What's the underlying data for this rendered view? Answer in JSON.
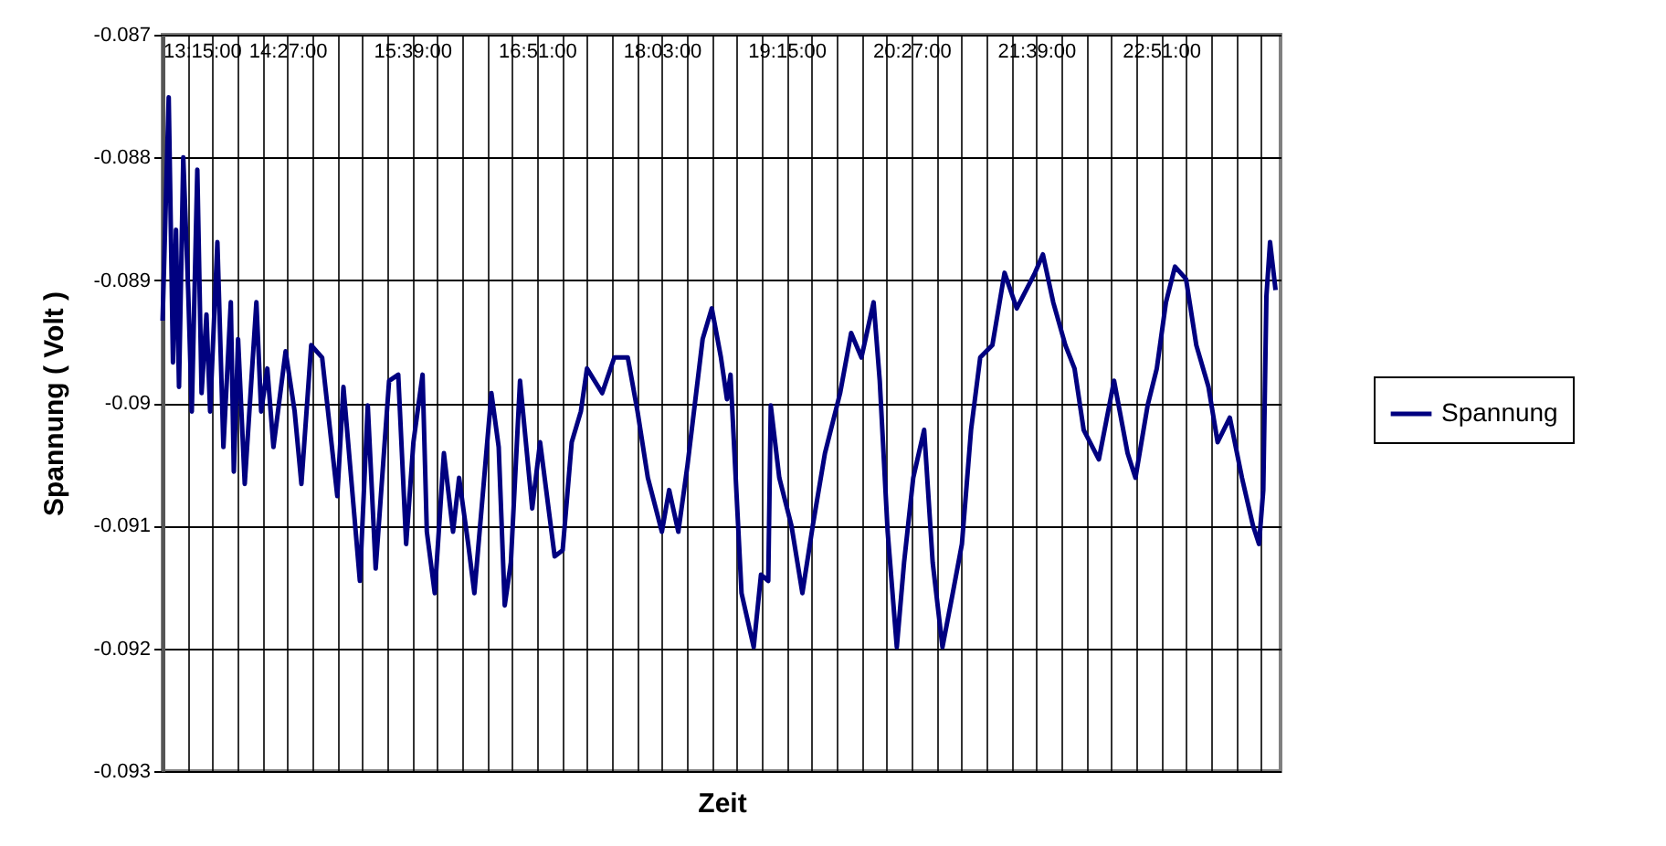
{
  "chart_data": {
    "type": "line",
    "xlabel": "Zeit",
    "ylabel": "Spannung ( Volt )",
    "xlim": [
      13.25,
      24.0
    ],
    "ylim": [
      -0.093,
      -0.087
    ],
    "yticks": [
      -0.093,
      -0.092,
      -0.091,
      -0.09,
      -0.089,
      -0.088,
      -0.087
    ],
    "xticks": [
      {
        "value": 13.25,
        "label": "13:15:00"
      },
      {
        "value": 13.49,
        "label": null
      },
      {
        "value": 13.73,
        "label": null
      },
      {
        "value": 13.97,
        "label": null
      },
      {
        "value": 14.21,
        "label": null
      },
      {
        "value": 14.45,
        "label": "14:27:00"
      },
      {
        "value": 14.69,
        "label": null
      },
      {
        "value": 14.93,
        "label": null
      },
      {
        "value": 15.17,
        "label": null
      },
      {
        "value": 15.41,
        "label": null
      },
      {
        "value": 15.65,
        "label": "15:39:00"
      },
      {
        "value": 15.89,
        "label": null
      },
      {
        "value": 16.13,
        "label": null
      },
      {
        "value": 16.37,
        "label": null
      },
      {
        "value": 16.61,
        "label": null
      },
      {
        "value": 16.85,
        "label": "16:51:00"
      },
      {
        "value": 17.09,
        "label": null
      },
      {
        "value": 17.33,
        "label": null
      },
      {
        "value": 17.57,
        "label": null
      },
      {
        "value": 17.81,
        "label": null
      },
      {
        "value": 18.05,
        "label": "18:03:00"
      },
      {
        "value": 18.29,
        "label": null
      },
      {
        "value": 18.53,
        "label": null
      },
      {
        "value": 18.77,
        "label": null
      },
      {
        "value": 19.01,
        "label": null
      },
      {
        "value": 19.25,
        "label": "19:15:00"
      },
      {
        "value": 19.49,
        "label": null
      },
      {
        "value": 19.73,
        "label": null
      },
      {
        "value": 19.97,
        "label": null
      },
      {
        "value": 20.21,
        "label": null
      },
      {
        "value": 20.45,
        "label": "20:27:00"
      },
      {
        "value": 20.69,
        "label": null
      },
      {
        "value": 20.93,
        "label": null
      },
      {
        "value": 21.17,
        "label": null
      },
      {
        "value": 21.41,
        "label": null
      },
      {
        "value": 21.65,
        "label": "21:39:00"
      },
      {
        "value": 21.89,
        "label": null
      },
      {
        "value": 22.13,
        "label": null
      },
      {
        "value": 22.37,
        "label": null
      },
      {
        "value": 22.61,
        "label": null
      },
      {
        "value": 22.85,
        "label": "22:51:00"
      },
      {
        "value": 23.09,
        "label": null
      },
      {
        "value": 23.33,
        "label": null
      },
      {
        "value": 23.57,
        "label": null
      },
      {
        "value": 23.81,
        "label": null
      }
    ],
    "grid": true,
    "legend": "right",
    "x": [
      13.25,
      13.309,
      13.35,
      13.379,
      13.408,
      13.449,
      13.496,
      13.531,
      13.584,
      13.625,
      13.672,
      13.707,
      13.777,
      13.835,
      13.906,
      13.935,
      13.976,
      14.04,
      14.152,
      14.198,
      14.257,
      14.316,
      14.433,
      14.52,
      14.585,
      14.679,
      14.784,
      14.93,
      14.989,
      15.147,
      15.223,
      15.299,
      15.428,
      15.516,
      15.592,
      15.662,
      15.75,
      15.791,
      15.867,
      15.955,
      16.043,
      16.101,
      16.189,
      16.248,
      16.412,
      16.482,
      16.54,
      16.599,
      16.687,
      16.804,
      16.88,
      17.02,
      17.097,
      17.184,
      17.272,
      17.331,
      17.477,
      17.594,
      17.723,
      17.817,
      17.916,
      18.051,
      18.121,
      18.209,
      18.297,
      18.443,
      18.531,
      18.619,
      18.677,
      18.711,
      18.817,
      18.934,
      19.004,
      19.074,
      19.098,
      19.18,
      19.297,
      19.402,
      19.502,
      19.619,
      19.765,
      19.871,
      19.97,
      20.087,
      20.146,
      20.222,
      20.31,
      20.38,
      20.468,
      20.573,
      20.655,
      20.749,
      20.848,
      20.936,
      21.024,
      21.112,
      21.229,
      21.346,
      21.463,
      21.639,
      21.715,
      21.814,
      21.931,
      22.019,
      22.107,
      22.253,
      22.399,
      22.529,
      22.605,
      22.722,
      22.81,
      22.898,
      22.985,
      23.091,
      23.19,
      23.307,
      23.395,
      23.512,
      23.629,
      23.735,
      23.793,
      23.834,
      23.864,
      23.899,
      23.952
    ],
    "series": [
      {
        "name": "Spannung",
        "color": "#000080",
        "values": [
          -0.08933,
          -0.08751,
          -0.08967,
          -0.08859,
          -0.08987,
          -0.088,
          -0.08908,
          -0.09007,
          -0.0881,
          -0.08992,
          -0.08928,
          -0.09007,
          -0.08869,
          -0.09036,
          -0.08918,
          -0.09056,
          -0.08948,
          -0.09066,
          -0.08918,
          -0.09007,
          -0.08972,
          -0.09036,
          -0.08958,
          -0.09007,
          -0.09066,
          -0.08953,
          -0.08963,
          -0.09076,
          -0.08987,
          -0.09145,
          -0.09002,
          -0.09135,
          -0.08982,
          -0.08977,
          -0.09115,
          -0.09032,
          -0.08977,
          -0.09105,
          -0.09155,
          -0.09041,
          -0.09105,
          -0.09061,
          -0.09115,
          -0.09155,
          -0.08992,
          -0.09036,
          -0.09165,
          -0.0913,
          -0.08982,
          -0.09086,
          -0.09032,
          -0.09125,
          -0.0912,
          -0.09032,
          -0.09007,
          -0.08972,
          -0.08992,
          -0.08963,
          -0.08963,
          -0.09007,
          -0.09061,
          -0.09105,
          -0.09071,
          -0.09105,
          -0.09051,
          -0.08948,
          -0.08923,
          -0.08963,
          -0.08997,
          -0.08977,
          -0.09155,
          -0.09199,
          -0.0914,
          -0.09145,
          -0.09002,
          -0.09061,
          -0.091,
          -0.09155,
          -0.091,
          -0.09041,
          -0.08992,
          -0.08943,
          -0.08963,
          -0.08918,
          -0.08982,
          -0.09105,
          -0.09199,
          -0.0913,
          -0.09061,
          -0.09022,
          -0.0913,
          -0.09199,
          -0.09155,
          -0.09115,
          -0.09022,
          -0.08963,
          -0.08953,
          -0.08894,
          -0.08923,
          -0.08894,
          -0.08879,
          -0.08918,
          -0.08953,
          -0.08972,
          -0.09022,
          -0.09046,
          -0.08982,
          -0.09041,
          -0.09061,
          -0.09002,
          -0.08972,
          -0.08918,
          -0.08889,
          -0.08899,
          -0.08953,
          -0.08987,
          -0.09032,
          -0.09012,
          -0.09061,
          -0.091,
          -0.09115,
          -0.09071,
          -0.08913,
          -0.08869,
          -0.08908
        ]
      }
    ]
  }
}
